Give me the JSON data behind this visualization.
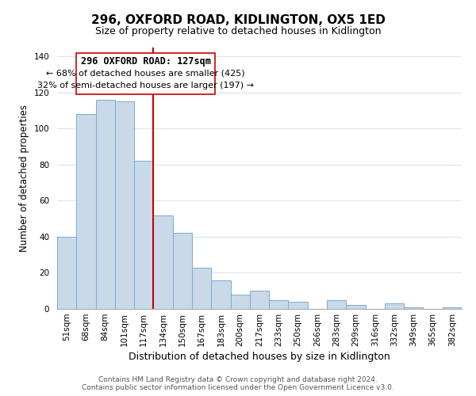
{
  "title": "296, OXFORD ROAD, KIDLINGTON, OX5 1ED",
  "subtitle": "Size of property relative to detached houses in Kidlington",
  "xlabel": "Distribution of detached houses by size in Kidlington",
  "ylabel": "Number of detached properties",
  "categories": [
    "51sqm",
    "68sqm",
    "84sqm",
    "101sqm",
    "117sqm",
    "134sqm",
    "150sqm",
    "167sqm",
    "183sqm",
    "200sqm",
    "217sqm",
    "233sqm",
    "250sqm",
    "266sqm",
    "283sqm",
    "299sqm",
    "316sqm",
    "332sqm",
    "349sqm",
    "365sqm",
    "382sqm"
  ],
  "values": [
    40,
    108,
    116,
    115,
    82,
    52,
    42,
    23,
    16,
    8,
    10,
    5,
    4,
    0,
    5,
    2,
    0,
    3,
    1,
    0,
    1
  ],
  "bar_color": "#c8d9ea",
  "bar_edge_color": "#7faac8",
  "reference_label": "296 OXFORD ROAD: 127sqm",
  "annotation_line1": "← 68% of detached houses are smaller (425)",
  "annotation_line2": "32% of semi-detached houses are larger (197) →",
  "vline_color": "#cc0000",
  "vline_x": 4.5,
  "box_color": "#ffffff",
  "box_edge_color": "#cc0000",
  "ylim": [
    0,
    145
  ],
  "yticks": [
    0,
    20,
    40,
    60,
    80,
    100,
    120,
    140
  ],
  "footer1": "Contains HM Land Registry data © Crown copyright and database right 2024.",
  "footer2": "Contains public sector information licensed under the Open Government Licence v3.0.",
  "title_fontsize": 11,
  "subtitle_fontsize": 9,
  "xlabel_fontsize": 9,
  "ylabel_fontsize": 8.5,
  "tick_fontsize": 7.5,
  "annotation_fontsize_bold": 8.5,
  "annotation_fontsize": 8,
  "footer_fontsize": 6.5
}
